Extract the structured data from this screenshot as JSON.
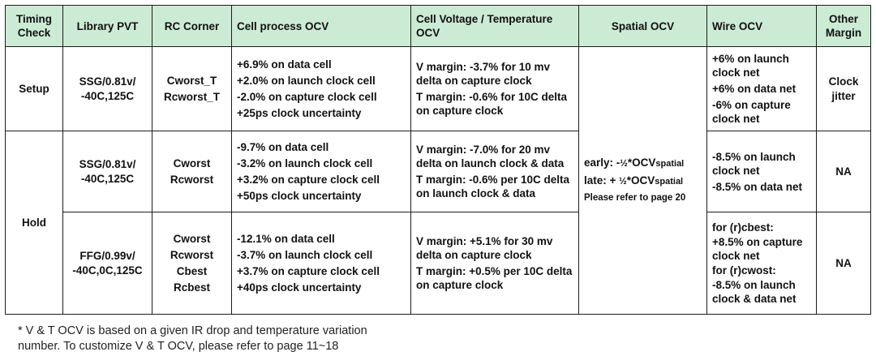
{
  "headers": {
    "timing_check": "Timing Check",
    "library_pvt": "Library PVT",
    "rc_corner": "RC Corner",
    "cell_process_ocv": "Cell process  OCV",
    "cell_voltage_temp_ocv": "Cell Voltage / Temperature OCV",
    "spatial_ocv": "Spatial OCV",
    "wire_ocv": "Wire OCV",
    "other_margin": "Other Margin"
  },
  "setup": {
    "check": "Setup",
    "pvt": [
      "SSG/0.81v/",
      "-40C,125C"
    ],
    "rc": [
      "Cworst_T",
      "Rcworst_T"
    ],
    "cell_process": [
      "+6.9%  on data cell",
      "+2.0% on launch clock cell",
      "-2.0% on capture clock cell",
      "+25ps clock uncertainty"
    ],
    "vt": [
      "V margin: -3.7% for 10 mv delta on capture clock",
      "T margin: -0.6% for 10C delta on capture clock"
    ],
    "wire": [
      "+6% on launch clock net",
      "+6% on data net",
      "-6% on capture clock net"
    ],
    "other": [
      "Clock",
      "jitter"
    ]
  },
  "hold": {
    "check": "Hold",
    "row1": {
      "pvt": [
        "SSG/0.81v/",
        "-40C,125C"
      ],
      "rc": [
        "Cworst",
        "Rcworst"
      ],
      "cell_process": [
        "-9.7% on data cell",
        "-3.2% on launch clock  cell",
        "+3.2% on capture clock cell",
        "+50ps clock uncertainty"
      ],
      "vt": [
        "V margin: -7.0% for 20 mv delta on launch clock & data",
        "T margin: -0.6% per 10C delta on launch clock & data"
      ],
      "wire": [
        "-8.5% on launch clock net",
        "-8.5% on data net"
      ],
      "other": "NA"
    },
    "row2": {
      "pvt": [
        "FFG/0.99v/",
        "-40C,0C,125C"
      ],
      "rc": [
        "Cworst",
        "Rcworst",
        "Cbest",
        "Rcbest"
      ],
      "cell_process": [
        "-12.1% on data cell",
        "-3.7% on launch clock  cell",
        "+3.7% on capture clock cell",
        "+40ps clock uncertainty"
      ],
      "vt": [
        "V margin: +5.1% for 30 mv delta on capture clock",
        "T margin: +0.5% per 10C delta on capture clock"
      ],
      "wire": [
        "for (r)cbest:",
        "+8.5% on capture clock net",
        "for (r)cwost:",
        "-8.5% on launch clock & data net"
      ],
      "other": "NA"
    }
  },
  "spatial": {
    "early_prefix": "early: -",
    "early_frac": "½",
    "early_mid": "*OCV",
    "early_sub": "spatial",
    "late_prefix": "late: + ",
    "late_frac": "½",
    "late_mid": "*OCV",
    "late_sub": "spatial",
    "note": "Please refer to page 20"
  },
  "footnote": [
    "* V & T OCV is based on a given IR drop and temperature variation",
    "number. To customize V & T OCV, please refer to page 11~18"
  ]
}
